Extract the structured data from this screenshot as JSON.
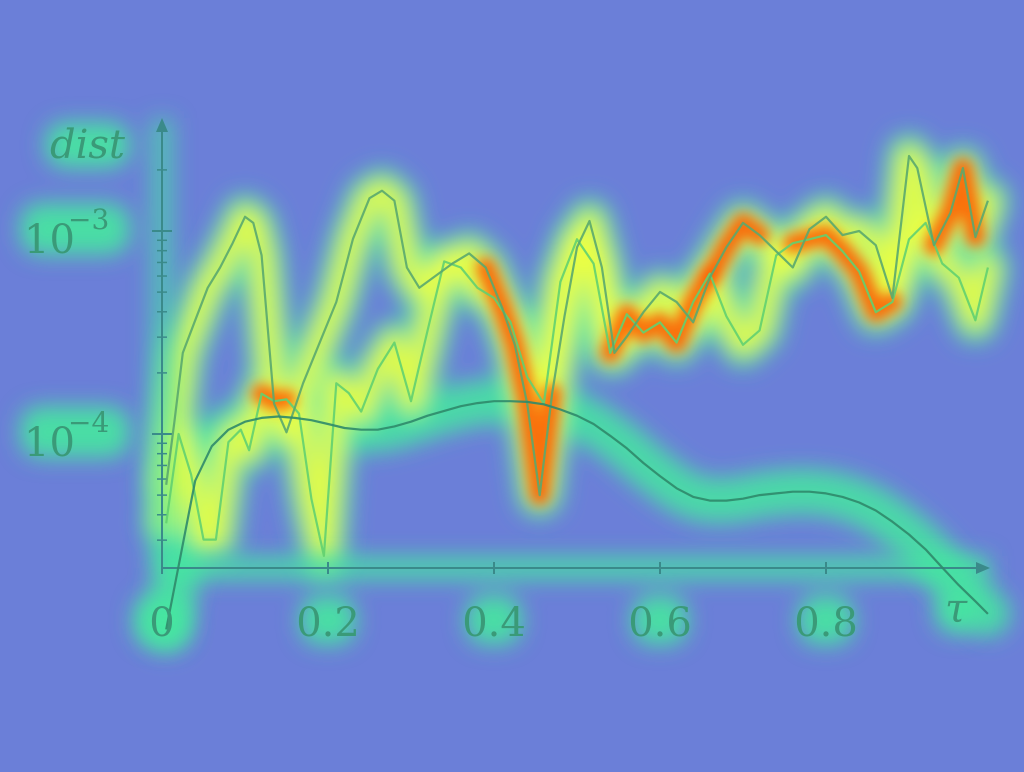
{
  "colors": {
    "background": "#6b7fd8",
    "axis": "#3a8a8a",
    "heat_low": "#45e8a0",
    "heat_mid": "#f0ff40",
    "heat_high": "#ff5a00"
  },
  "chart_data": {
    "type": "line",
    "title": "",
    "xlabel": "τ",
    "ylabel": "dist",
    "xlim": [
      0,
      1
    ],
    "ylim": [
      1e-05,
      0.003
    ],
    "yscale": "log",
    "x_ticks": [
      0,
      0.2,
      0.4,
      0.6,
      0.8
    ],
    "x_tick_labels": [
      "0",
      "0.2",
      "0.4",
      "0.6",
      "0.8"
    ],
    "y_ticks": [
      0.0001,
      0.001
    ],
    "y_tick_labels": [
      {
        "base": "10",
        "exp": "−4"
      },
      {
        "base": "10",
        "exp": "−3"
      }
    ],
    "grid": false,
    "overlay": "heatmap",
    "series": [
      {
        "x": [
          0.005,
          0.02,
          0.035,
          0.05,
          0.065,
          0.08,
          0.095,
          0.105,
          0.12,
          0.135,
          0.15,
          0.165,
          0.18,
          0.195,
          0.21,
          0.225,
          0.24,
          0.26,
          0.28,
          0.3,
          0.32,
          0.34,
          0.36,
          0.38,
          0.4,
          0.42,
          0.44,
          0.46,
          0.48,
          0.5,
          0.52,
          0.54,
          0.56,
          0.58,
          0.6,
          0.62,
          0.64,
          0.66,
          0.68,
          0.7,
          0.72,
          0.74,
          0.76,
          0.78,
          0.8,
          0.82,
          0.84,
          0.86,
          0.88,
          0.9,
          0.92,
          0.94,
          0.96,
          0.98,
          0.995
        ],
        "y": [
          3.63e-05,
          0.0001,
          6.31e-05,
          3.02e-05,
          3.02e-05,
          9.12e-05,
          0.000105,
          8.32e-05,
          0.000158,
          0.000145,
          0.000148,
          0.000126,
          4.79e-05,
          2.51e-05,
          0.000178,
          0.000159,
          0.000129,
          0.000209,
          0.000282,
          0.000145,
          0.000324,
          0.000708,
          0.000661,
          0.000525,
          0.000468,
          0.000355,
          0.000191,
          0.000141,
          0.000562,
          0.00091,
          0.000691,
          0.000251,
          0.000389,
          0.000316,
          0.000355,
          0.000282,
          0.000447,
          0.000617,
          0.00038,
          0.000275,
          0.000324,
          0.000759,
          0.000871,
          0.00091,
          0.000955,
          0.000794,
          0.000631,
          0.000398,
          0.000447,
          0.00091,
          0.001096,
          0.000692,
          0.000589,
          0.000363,
          0.000661
        ]
      },
      {
        "x": [
          0.005,
          0.015,
          0.025,
          0.04,
          0.055,
          0.07,
          0.085,
          0.1,
          0.11,
          0.12,
          0.135,
          0.15,
          0.17,
          0.19,
          0.21,
          0.23,
          0.25,
          0.265,
          0.28,
          0.295,
          0.31,
          0.33,
          0.35,
          0.37,
          0.39,
          0.41,
          0.425,
          0.44,
          0.455,
          0.47,
          0.485,
          0.5,
          0.515,
          0.53,
          0.545,
          0.56,
          0.58,
          0.6,
          0.62,
          0.64,
          0.66,
          0.68,
          0.7,
          0.72,
          0.74,
          0.76,
          0.78,
          0.8,
          0.82,
          0.84,
          0.86,
          0.88,
          0.9,
          0.91,
          0.93,
          0.95,
          0.965,
          0.98,
          0.995
        ],
        "y": [
          5.62e-05,
          0.000115,
          0.000251,
          0.000363,
          0.000525,
          0.000661,
          0.000871,
          0.001175,
          0.001096,
          0.000759,
          0.000141,
          0.000102,
          0.000178,
          0.000282,
          0.000447,
          0.000912,
          0.00145,
          0.00158,
          0.00141,
          0.00066,
          0.000525,
          0.000603,
          0.000692,
          0.000776,
          0.000661,
          0.000417,
          0.000275,
          0.000141,
          5e-05,
          0.000158,
          0.00038,
          0.00083,
          0.00112,
          0.000661,
          0.000251,
          0.000302,
          0.000398,
          0.000501,
          0.000447,
          0.000355,
          0.000589,
          0.000832,
          0.001096,
          0.000955,
          0.000794,
          0.000661,
          0.00102,
          0.001175,
          0.000955,
          0.001,
          0.000851,
          0.000468,
          0.00234,
          0.00204,
          0.000851,
          0.00123,
          0.00204,
          0.000933,
          0.00141
        ]
      },
      {
        "x": [
          0.005,
          0.02,
          0.04,
          0.06,
          0.08,
          0.1,
          0.12,
          0.14,
          0.16,
          0.18,
          0.2,
          0.22,
          0.24,
          0.26,
          0.28,
          0.3,
          0.32,
          0.34,
          0.36,
          0.38,
          0.4,
          0.42,
          0.44,
          0.46,
          0.48,
          0.5,
          0.52,
          0.54,
          0.56,
          0.58,
          0.6,
          0.62,
          0.64,
          0.66,
          0.68,
          0.7,
          0.72,
          0.74,
          0.76,
          0.78,
          0.8,
          0.82,
          0.84,
          0.86,
          0.88,
          0.9,
          0.92,
          0.94,
          0.96,
          0.98,
          0.995
        ],
        "y": [
          1.09e-05,
          2.24e-05,
          5.89e-05,
          8.71e-05,
          0.000105,
          0.000115,
          0.00012,
          0.000122,
          0.00012,
          0.000117,
          0.000112,
          0.000107,
          0.000105,
          0.000105,
          0.000109,
          0.000115,
          0.000123,
          0.00013,
          0.000137,
          0.000142,
          0.000145,
          0.000145,
          0.000144,
          0.00014,
          0.000132,
          0.000123,
          0.000112,
          9.8e-05,
          8.5e-05,
          7.2e-05,
          6.2e-05,
          5.4e-05,
          4.9e-05,
          4.7e-05,
          4.7e-05,
          4.8e-05,
          5e-05,
          5.1e-05,
          5.2e-05,
          5.2e-05,
          5.1e-05,
          4.9e-05,
          4.6e-05,
          4.2e-05,
          3.7e-05,
          3.2e-05,
          2.7e-05,
          2.2e-05,
          1.8e-05,
          1.5e-05,
          1.3e-05
        ]
      }
    ]
  }
}
